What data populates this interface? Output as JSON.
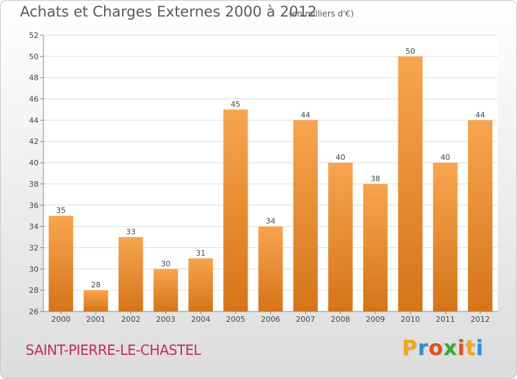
{
  "chart_data": {
    "type": "bar",
    "title": "Achats et Charges Externes 2000 à 2012",
    "unit_label": "(en milliers d'€)",
    "categories": [
      "2000",
      "2001",
      "2002",
      "2003",
      "2004",
      "2005",
      "2006",
      "2007",
      "2008",
      "2009",
      "2010",
      "2011",
      "2012"
    ],
    "values": [
      35,
      28,
      33,
      30,
      31,
      45,
      34,
      44,
      40,
      38,
      50,
      40,
      44
    ],
    "ylim": [
      26,
      52
    ],
    "yticks": [
      26,
      28,
      30,
      32,
      34,
      36,
      38,
      40,
      42,
      44,
      46,
      48,
      50,
      52
    ],
    "grid": true,
    "bar_color_top": "#f7a54f",
    "bar_color_bottom": "#d67419"
  },
  "commune": "SAINT-PIERRE-LE-CHASTEL",
  "brand": {
    "letters": [
      "P",
      "r",
      "o",
      "x",
      "i",
      "t",
      "i"
    ],
    "colors": [
      "#f2a71b",
      "#2f8fd8",
      "#e0501e",
      "#3aa535",
      "#e0501e",
      "#f2a71b",
      "#2f8fd8"
    ]
  }
}
